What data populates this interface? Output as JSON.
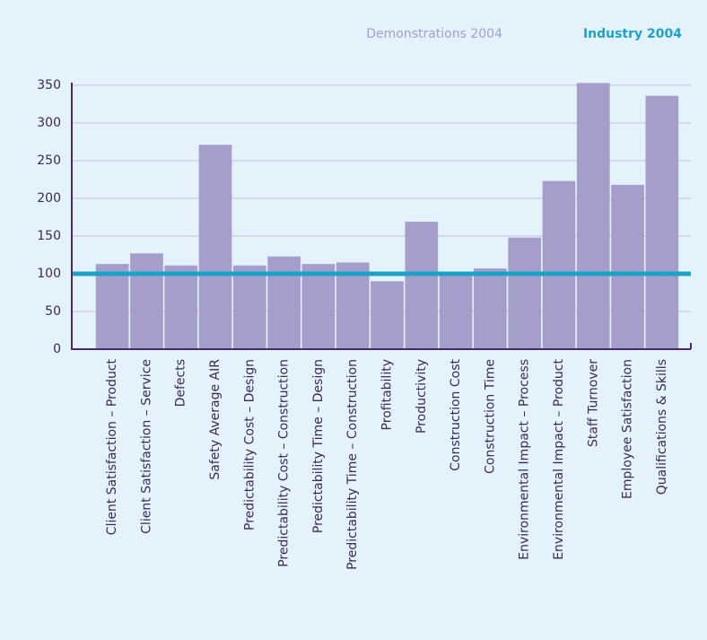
{
  "chart_data": {
    "type": "bar",
    "categories": [
      "Client Satisfaction – Product",
      "Client Satisfaction – Service",
      "Defects",
      "Safety Average AIR",
      "Predictability Cost – Design",
      "Predictability Cost – Construction",
      "Predictability Time – Design",
      "Predictability Time – Construction",
      "Profitability",
      "Productivity",
      "Construction Cost",
      "Construction Time",
      "Environmental Impact – Process",
      "Environmental Impact – Product",
      "Staff Turnover",
      "Employee Satisfaction",
      "Qualifications & Skills"
    ],
    "series": [
      {
        "name": "Demonstrations 2004",
        "color": "#a59ecb",
        "type": "bar",
        "values": [
          113,
          127,
          111,
          271,
          111,
          123,
          113,
          115,
          90,
          169,
          100,
          107,
          148,
          223,
          353,
          218,
          336
        ]
      },
      {
        "name": "Industry 2004",
        "color": "#1aa3c6",
        "type": "line",
        "values": [
          100,
          100,
          100,
          100,
          100,
          100,
          100,
          100,
          100,
          100,
          100,
          100,
          100,
          100,
          100,
          100,
          100
        ]
      }
    ],
    "ylim": [
      0,
      350
    ],
    "yticks": [
      0,
      50,
      100,
      150,
      200,
      250,
      300,
      350
    ],
    "grid": true,
    "legend": "top-right"
  }
}
